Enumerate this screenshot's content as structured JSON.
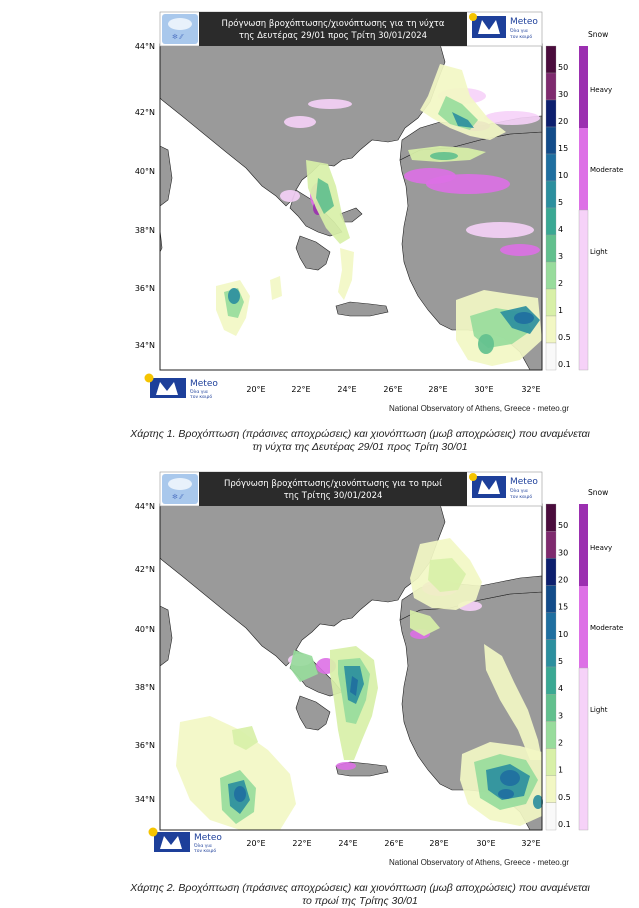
{
  "maps": [
    {
      "title_line1": "Πρόγνωση βροχόπτωσης/χιονόπτωσης για τη νύχτα",
      "title_line2": "της Δευτέρας 29/01 προς Τρίτη 30/01/2024",
      "caption_line1": "Χάρτης 1. Βροχόπτωση (πράσινες αποχρώσεις) και χιονόπτωση (μωβ αποχρώσεις) που αναμένεται",
      "caption_line2": "τη νύχτα της Δευτέρας 29/01 προς Τρίτη 30/01"
    },
    {
      "title_line1": "Πρόγνωση βροχόπτωσης/χιονόπτωσης για το πρωί",
      "title_line2": "της Τρίτης 30/01/2024",
      "caption_line1": "Χάρτης 2. Βροχόπτωση (πράσινες αποχρώσεις) και χιονόπτωση (μωβ αποχρώσεις) που αναμένεται",
      "caption_line2": "το πρωί της Τρίτης 30/01"
    }
  ],
  "logo": {
    "name": "Meteo",
    "tagline_1": "Όλα για",
    "tagline_2": "τον καιρό"
  },
  "credit": "National Observatory of Athens, Greece - meteo.gr",
  "lat_labels": [
    "44°N",
    "42°N",
    "40°N",
    "38°N",
    "36°N",
    "34°N"
  ],
  "lon_labels": [
    "20°E",
    "22°E",
    "24°E",
    "26°E",
    "28°E",
    "30°E",
    "32°E"
  ],
  "rain_scale": [
    "50",
    "30",
    "20",
    "15",
    "10",
    "5",
    "4",
    "3",
    "2",
    "1",
    "0.5",
    "0.1"
  ],
  "snow_legend": {
    "title": "Snow",
    "heavy": "Heavy",
    "moderate": "Moderate",
    "light": "Light"
  },
  "colors": {
    "land": "#9a9a9a",
    "sea": "#ffffff",
    "title_bg": "#2b2b2b",
    "logo_blue": "#1d3f9a",
    "logo_sun": "#f5c400",
    "rain": [
      "#4a0c3c",
      "#7e2a6e",
      "#0d1f6e",
      "#134c8a",
      "#1f6fa0",
      "#2c8f9e",
      "#3aa893",
      "#62c08e",
      "#98dc9c",
      "#d8f0a8",
      "#f2f7c4",
      "#f9f9f9"
    ],
    "snow": [
      "#9b2fb0",
      "#dd70e6",
      "#f6d2f8"
    ]
  }
}
